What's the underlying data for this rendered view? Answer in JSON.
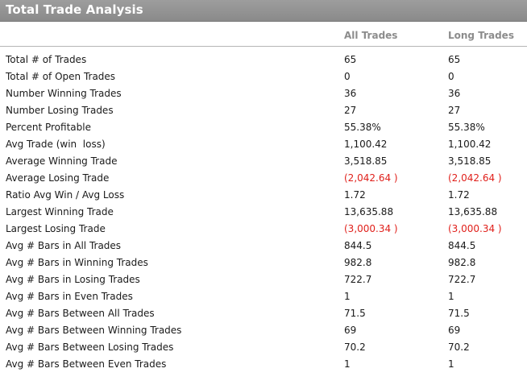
{
  "title": "Total Trade Analysis",
  "columns": [
    "All Trades",
    "Long Trades"
  ],
  "colors": {
    "negative": "#e0201b",
    "title_bar": "#959595",
    "header_text": "#8c8c8c"
  },
  "rows": [
    {
      "label": "Total # of Trades",
      "all": "65",
      "long": "65",
      "negative": false
    },
    {
      "label": "Total # of Open Trades",
      "all": "0",
      "long": "0",
      "negative": false
    },
    {
      "label": "Number Winning Trades",
      "all": "36",
      "long": "36",
      "negative": false
    },
    {
      "label": "Number Losing Trades",
      "all": "27",
      "long": "27",
      "negative": false
    },
    {
      "label": "Percent Profitable",
      "all": "55.38%",
      "long": "55.38%",
      "negative": false
    },
    {
      "label": "Avg Trade (win  loss)",
      "all": "1,100.42",
      "long": "1,100.42",
      "negative": false
    },
    {
      "label": "Average Winning Trade",
      "all": "3,518.85",
      "long": "3,518.85",
      "negative": false
    },
    {
      "label": "Average Losing Trade",
      "all": "(2,042.64 )",
      "long": "(2,042.64 )",
      "negative": true
    },
    {
      "label": "Ratio Avg Win / Avg Loss",
      "all": "1.72",
      "long": "1.72",
      "negative": false
    },
    {
      "label": "Largest Winning Trade",
      "all": "13,635.88",
      "long": "13,635.88",
      "negative": false
    },
    {
      "label": "Largest Losing Trade",
      "all": "(3,000.34 )",
      "long": "(3,000.34 )",
      "negative": true
    },
    {
      "label": "Avg # Bars in All Trades",
      "all": "844.5",
      "long": "844.5",
      "negative": false
    },
    {
      "label": "Avg # Bars in Winning Trades",
      "all": "982.8",
      "long": "982.8",
      "negative": false
    },
    {
      "label": "Avg # Bars in Losing Trades",
      "all": "722.7",
      "long": "722.7",
      "negative": false
    },
    {
      "label": "Avg # Bars in Even Trades",
      "all": "1",
      "long": "1",
      "negative": false
    },
    {
      "label": "Avg # Bars Between All Trades",
      "all": "71.5",
      "long": "71.5",
      "negative": false
    },
    {
      "label": "Avg # Bars Between Winning Trades",
      "all": "69",
      "long": "69",
      "negative": false
    },
    {
      "label": "Avg # Bars Between Losing Trades",
      "all": "70.2",
      "long": "70.2",
      "negative": false
    },
    {
      "label": "Avg # Bars Between Even Trades",
      "all": "1",
      "long": "1",
      "negative": false
    }
  ]
}
